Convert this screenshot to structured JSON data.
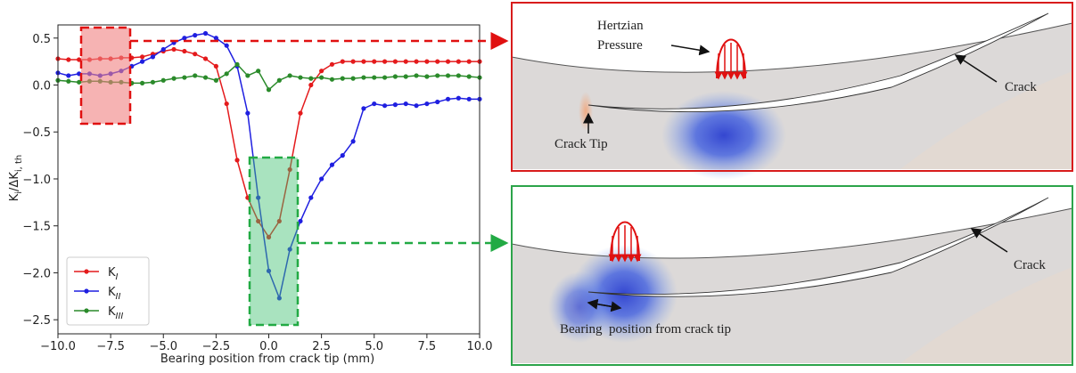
{
  "chart_data": {
    "type": "line",
    "y_label": [
      "K",
      "i",
      "/ΔK",
      "i, th"
    ],
    "x_label": "Bearing position from crack tip (mm)",
    "x": [
      -10,
      -9.5,
      -9,
      -8.5,
      -8,
      -7.5,
      -7,
      -6.5,
      -6,
      -5.5,
      -5,
      -4.5,
      -4,
      -3.5,
      -3,
      -2.5,
      -2,
      -1.5,
      -1,
      -0.5,
      0,
      0.5,
      1,
      1.5,
      2,
      2.5,
      3,
      3.5,
      4,
      4.5,
      5,
      5.5,
      6,
      6.5,
      7,
      7.5,
      8,
      8.5,
      9,
      9.5,
      10
    ],
    "series": [
      {
        "name": "K",
        "name_subscript": "I",
        "color": "#e41a1c",
        "values": [
          0.28,
          0.27,
          0.27,
          0.27,
          0.28,
          0.28,
          0.29,
          0.29,
          0.3,
          0.33,
          0.36,
          0.38,
          0.36,
          0.33,
          0.28,
          0.2,
          -0.2,
          -0.8,
          -1.2,
          -1.45,
          -1.62,
          -1.45,
          -0.9,
          -0.3,
          0.0,
          0.15,
          0.22,
          0.25,
          0.25,
          0.25,
          0.25,
          0.25,
          0.25,
          0.25,
          0.25,
          0.25,
          0.25,
          0.25,
          0.25,
          0.25,
          0.25
        ]
      },
      {
        "name": "K",
        "name_subscript": "II",
        "color": "#1f1fe0",
        "values": [
          0.13,
          0.1,
          0.12,
          0.12,
          0.1,
          0.12,
          0.15,
          0.2,
          0.25,
          0.3,
          0.38,
          0.45,
          0.5,
          0.53,
          0.55,
          0.5,
          0.42,
          0.2,
          -0.3,
          -1.2,
          -1.98,
          -2.27,
          -1.75,
          -1.45,
          -1.2,
          -1.0,
          -0.85,
          -0.75,
          -0.6,
          -0.25,
          -0.2,
          -0.22,
          -0.21,
          -0.2,
          -0.22,
          -0.2,
          -0.18,
          -0.15,
          -0.14,
          -0.15,
          -0.15
        ]
      },
      {
        "name": "K",
        "name_subscript": "III",
        "color": "#2a8a2a",
        "values": [
          0.05,
          0.04,
          0.03,
          0.04,
          0.04,
          0.03,
          0.03,
          0.02,
          0.02,
          0.03,
          0.05,
          0.07,
          0.08,
          0.1,
          0.08,
          0.05,
          0.12,
          0.22,
          0.1,
          0.15,
          -0.05,
          0.05,
          0.1,
          0.08,
          0.07,
          0.08,
          0.06,
          0.07,
          0.07,
          0.08,
          0.08,
          0.08,
          0.09,
          0.09,
          0.1,
          0.09,
          0.1,
          0.1,
          0.1,
          0.09,
          0.08
        ]
      }
    ],
    "xlim": [
      -10,
      10
    ],
    "ylim": [
      -2.65,
      0.64
    ],
    "xticks": [
      {
        "value": -10,
        "label": "−10.0"
      },
      {
        "value": -7.5,
        "label": "−7.5"
      },
      {
        "value": -5,
        "label": "−5.0"
      },
      {
        "value": -2.5,
        "label": "−2.5"
      },
      {
        "value": 0,
        "label": "0.0"
      },
      {
        "value": 2.5,
        "label": "2.5"
      },
      {
        "value": 5,
        "label": "5.0"
      },
      {
        "value": 7.5,
        "label": "7.5"
      },
      {
        "value": 10,
        "label": "10.0"
      }
    ],
    "yticks": [
      {
        "value": 0.5,
        "label": "0.5"
      },
      {
        "value": 0,
        "label": "0.0"
      },
      {
        "value": -0.5,
        "label": "−0.5"
      },
      {
        "value": -1,
        "label": "−1.0"
      },
      {
        "value": -1.5,
        "label": "−1.5"
      },
      {
        "value": -2,
        "label": "−2.0"
      },
      {
        "value": -2.5,
        "label": "−2.5"
      }
    ],
    "legend": "lower left"
  },
  "panels": {
    "top": {
      "pressure_label": [
        "Hertzian",
        "Pressure"
      ],
      "crack_label": "Crack",
      "tip_label": "Crack Tip"
    },
    "bottom": {
      "crack_label": "Crack",
      "position_label": "Bearing  position from crack tip"
    }
  }
}
